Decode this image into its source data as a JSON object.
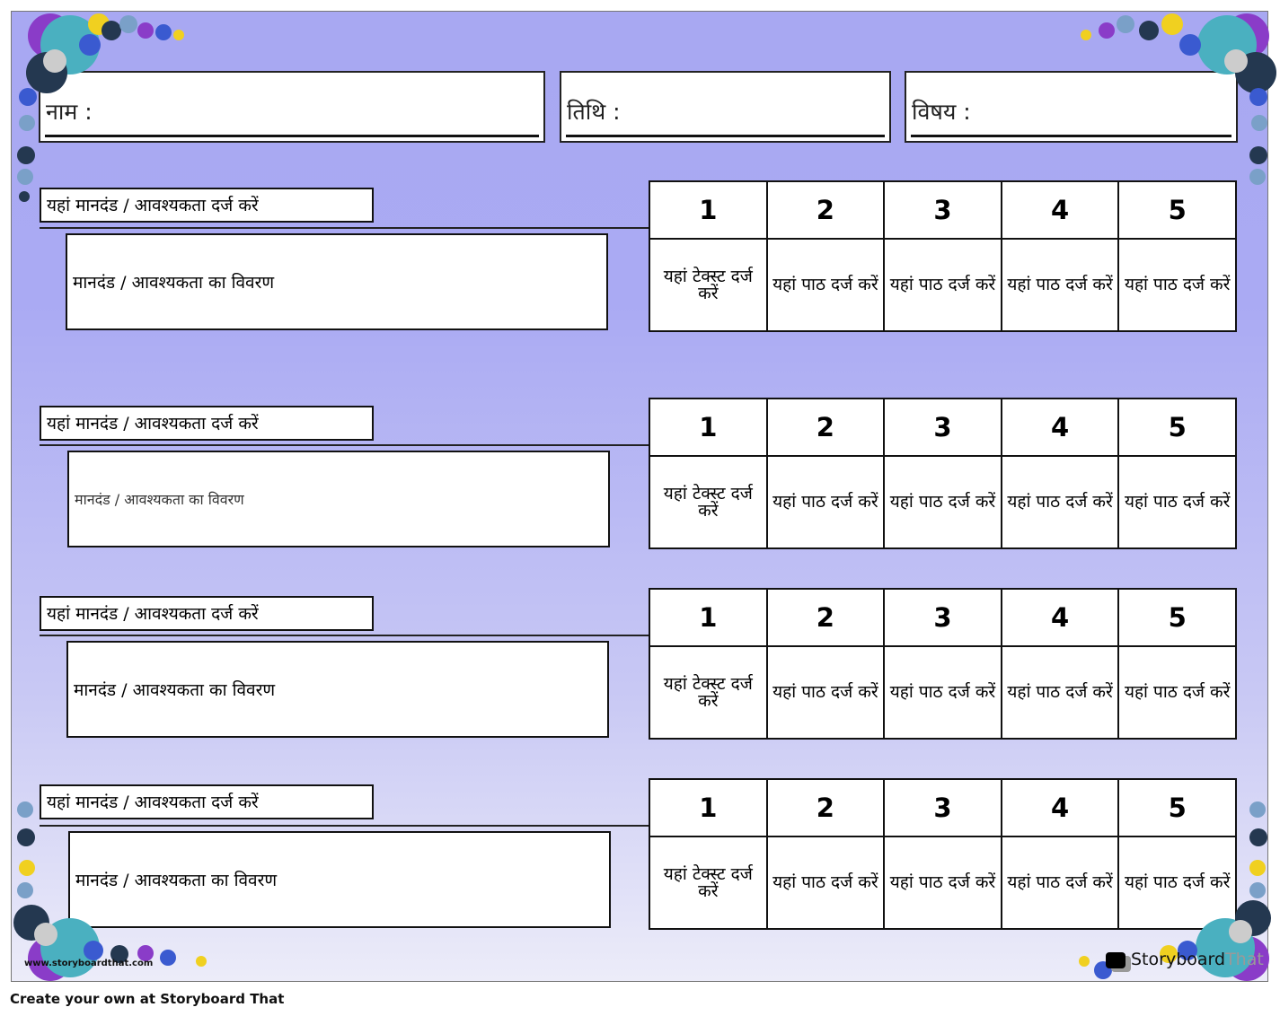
{
  "header": {
    "name_label": "नाम :",
    "date_label": "तिथि :",
    "subject_label": "विषय :"
  },
  "rows": [
    {
      "criteria": "यहां मानदंड / आवश्यकता दर्ज करें",
      "description": "मानदंड / आवश्यकता का विवरण",
      "scores": [
        "1",
        "2",
        "3",
        "4",
        "5"
      ],
      "cells": [
        "यहां टेक्स्ट दर्ज करें",
        "यहां पाठ दर्ज करें",
        "यहां पाठ दर्ज करें",
        "यहां पाठ दर्ज करें",
        "यहां पाठ दर्ज करें"
      ]
    },
    {
      "criteria": "यहां मानदंड / आवश्यकता दर्ज करें",
      "description": "मानदंड / आवश्यकता का विवरण",
      "scores": [
        "1",
        "2",
        "3",
        "4",
        "5"
      ],
      "cells": [
        "यहां टेक्स्ट दर्ज करें",
        "यहां पाठ दर्ज करें",
        "यहां पाठ दर्ज करें",
        "यहां पाठ दर्ज करें",
        "यहां पाठ दर्ज करें"
      ]
    },
    {
      "criteria": "यहां मानदंड / आवश्यकता दर्ज करें",
      "description": "मानदंड / आवश्यकता का विवरण",
      "scores": [
        "1",
        "2",
        "3",
        "4",
        "5"
      ],
      "cells": [
        "यहां टेक्स्ट दर्ज करें",
        "यहां पाठ दर्ज करें",
        "यहां पाठ दर्ज करें",
        "यहां पाठ दर्ज करें",
        "यहां पाठ दर्ज करें"
      ]
    },
    {
      "criteria": "यहां मानदंड / आवश्यकता दर्ज करें",
      "description": "मानदंड / आवश्यकता का विवरण",
      "scores": [
        "1",
        "2",
        "3",
        "4",
        "5"
      ],
      "cells": [
        "यहां टेक्स्ट दर्ज करें",
        "यहां पाठ दर्ज करें",
        "यहां पाठ दर्ज करें",
        "यहां पाठ दर्ज करें",
        "यहां पाठ दर्ज करें"
      ]
    }
  ],
  "watermark": "www.storyboardthat.com",
  "logo": {
    "part1": "Storyboard",
    "part2": "That"
  },
  "footer": "Create your own at Storyboard That",
  "colors": {
    "background_top": "#a8a8f2",
    "background_bottom": "#ececf9"
  }
}
